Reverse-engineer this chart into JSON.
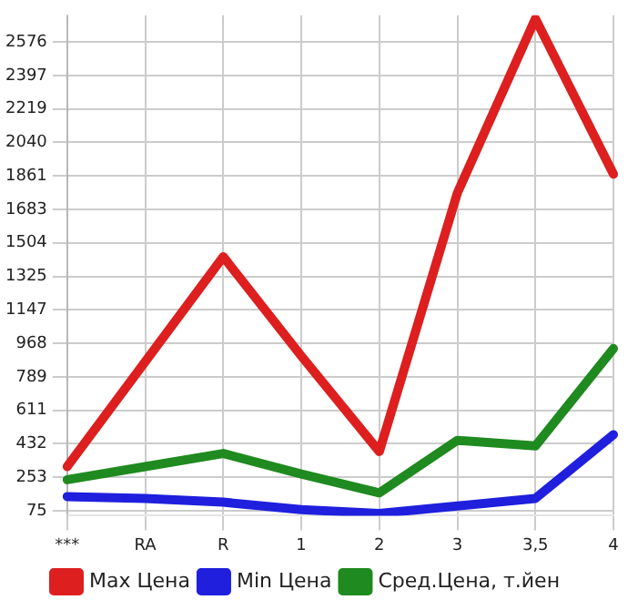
{
  "chart_data": {
    "type": "line",
    "categories": [
      "***",
      "RA",
      "R",
      "1",
      "2",
      "3",
      "3,5",
      "4"
    ],
    "series": [
      {
        "name": "Max Цена",
        "color": "#dd1f1f",
        "values": [
          310,
          870,
          1430,
          900,
          390,
          1770,
          2700,
          1870
        ]
      },
      {
        "name": "Min Цена",
        "color": "#1f1fdd",
        "values": [
          150,
          140,
          120,
          80,
          60,
          100,
          140,
          480
        ]
      },
      {
        "name": "Сред.Цена, т.йен",
        "color": "#1f8a1f",
        "values": [
          240,
          310,
          380,
          270,
          170,
          450,
          420,
          940
        ]
      }
    ],
    "ylim": [
      48,
      2718
    ],
    "yticks": [
      75,
      253,
      432,
      611,
      789,
      968,
      1147,
      1325,
      1504,
      1683,
      1861,
      2040,
      2219,
      2397,
      2576
    ],
    "grid": true,
    "legend": "bottom",
    "marker": "none",
    "line_style": "solid"
  }
}
